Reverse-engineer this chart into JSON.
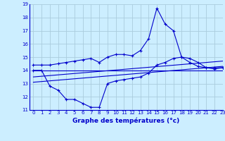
{
  "background_color": "#cceeff",
  "grid_color": "#aaccdd",
  "line_color": "#0000cc",
  "title": "Graphe des températures (°c)",
  "xlim": [
    -0.5,
    23
  ],
  "ylim": [
    11,
    19
  ],
  "yticks": [
    11,
    12,
    13,
    14,
    15,
    16,
    17,
    18,
    19
  ],
  "xticks": [
    0,
    1,
    2,
    3,
    4,
    5,
    6,
    7,
    8,
    9,
    10,
    11,
    12,
    13,
    14,
    15,
    16,
    17,
    18,
    19,
    20,
    21,
    22,
    23
  ],
  "series": [
    {
      "x": [
        0,
        1,
        2,
        3,
        4,
        5,
        6,
        7,
        8,
        9,
        10,
        11,
        12,
        13,
        14,
        15,
        16,
        17,
        18,
        19,
        20,
        21,
        22,
        23
      ],
      "y": [
        14.4,
        14.4,
        14.4,
        14.5,
        14.6,
        14.7,
        14.8,
        14.9,
        14.6,
        15.0,
        15.2,
        15.2,
        15.1,
        15.5,
        16.4,
        18.7,
        17.5,
        17.0,
        15.0,
        14.9,
        14.6,
        14.2,
        14.1,
        14.2
      ],
      "has_markers": true
    },
    {
      "x": [
        0,
        1,
        2,
        3,
        4,
        5,
        6,
        7,
        8,
        9,
        10,
        11,
        12,
        13,
        14,
        15,
        16,
        17,
        18,
        19,
        20,
        21,
        22,
        23
      ],
      "y": [
        14.0,
        14.0,
        12.8,
        12.5,
        11.8,
        11.8,
        11.5,
        11.2,
        11.2,
        13.0,
        13.2,
        13.3,
        13.4,
        13.5,
        13.8,
        14.4,
        14.6,
        14.9,
        15.0,
        14.6,
        14.3,
        14.2,
        14.2,
        14.2
      ],
      "has_markers": true
    },
    {
      "x": [
        0,
        23
      ],
      "y": [
        14.0,
        14.0
      ],
      "has_markers": false
    },
    {
      "x": [
        0,
        23
      ],
      "y": [
        13.1,
        14.3
      ],
      "has_markers": false
    },
    {
      "x": [
        0,
        23
      ],
      "y": [
        13.5,
        14.7
      ],
      "has_markers": false
    }
  ]
}
